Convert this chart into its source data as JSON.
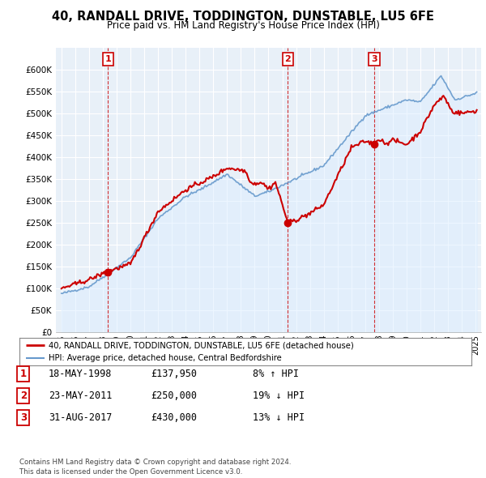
{
  "title": "40, RANDALL DRIVE, TODDINGTON, DUNSTABLE, LU5 6FE",
  "subtitle": "Price paid vs. HM Land Registry's House Price Index (HPI)",
  "ylabel_ticks": [
    "£0",
    "£50K",
    "£100K",
    "£150K",
    "£200K",
    "£250K",
    "£300K",
    "£350K",
    "£400K",
    "£450K",
    "£500K",
    "£550K",
    "£600K"
  ],
  "ytick_values": [
    0,
    50000,
    100000,
    150000,
    200000,
    250000,
    300000,
    350000,
    400000,
    450000,
    500000,
    550000,
    600000
  ],
  "xlim_left": 1994.6,
  "xlim_right": 2025.4,
  "ylim_bottom": 0,
  "ylim_top": 650000,
  "legend_line1": "40, RANDALL DRIVE, TODDINGTON, DUNSTABLE, LU5 6FE (detached house)",
  "legend_line2": "HPI: Average price, detached house, Central Bedfordshire",
  "sale_points": [
    {
      "label": "1",
      "year": 1998.38,
      "price": 137950
    },
    {
      "label": "2",
      "year": 2011.39,
      "price": 250000
    },
    {
      "label": "3",
      "year": 2017.66,
      "price": 430000
    }
  ],
  "sale_info": [
    {
      "num": "1",
      "date": "18-MAY-1998",
      "price": "£137,950",
      "hpi": "8% ↑ HPI"
    },
    {
      "num": "2",
      "date": "23-MAY-2011",
      "price": "£250,000",
      "hpi": "19% ↓ HPI"
    },
    {
      "num": "3",
      "date": "31-AUG-2017",
      "price": "£430,000",
      "hpi": "13% ↓ HPI"
    }
  ],
  "footer": "Contains HM Land Registry data © Crown copyright and database right 2024.\nThis data is licensed under the Open Government Licence v3.0.",
  "red_color": "#cc0000",
  "blue_color": "#6699cc",
  "blue_fill": "#ddeeff",
  "bg_color": "#ffffff",
  "plot_bg": "#e8f0f8",
  "grid_color": "#ffffff",
  "box_color": "#cc0000"
}
